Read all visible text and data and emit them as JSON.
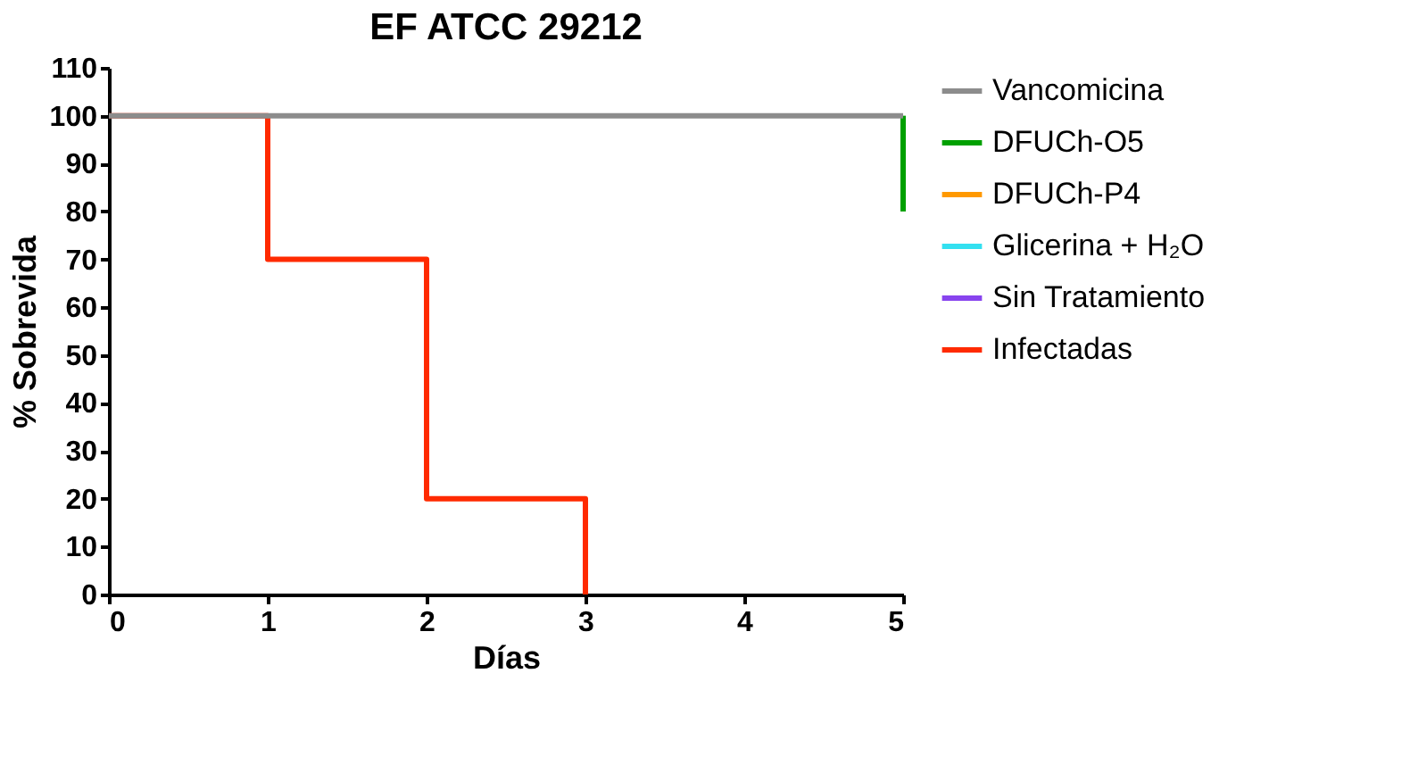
{
  "chart_data": {
    "type": "step",
    "title": "EF ATCC 29212",
    "xlabel": "Días",
    "ylabel": "% Sobrevida",
    "xlim": [
      0,
      5
    ],
    "xticks": [
      0,
      1,
      2,
      3,
      4,
      5
    ],
    "ylim": [
      0,
      110
    ],
    "yticks": [
      0,
      10,
      20,
      30,
      40,
      50,
      60,
      70,
      80,
      90,
      100,
      110
    ],
    "grid": false,
    "legend": "right",
    "series": [
      {
        "name": "Vancomicina",
        "color": "#8c8c8c",
        "x": [
          0,
          5
        ],
        "values": [
          100,
          100
        ]
      },
      {
        "name": "DFUCh-O5",
        "color": "#00a000",
        "x": [
          5,
          5
        ],
        "values": [
          100,
          80
        ]
      },
      {
        "name": "DFUCh-P4",
        "color": "#ff9900"
      },
      {
        "name": "Glicerina + H₂O",
        "color": "#33e0f0"
      },
      {
        "name": "Sin Tratamiento",
        "color": "#8844ee"
      },
      {
        "name": "Infectadas",
        "color": "#ff2a00",
        "x": [
          0,
          1,
          2,
          3
        ],
        "values": [
          100,
          70,
          20,
          0
        ]
      }
    ]
  }
}
